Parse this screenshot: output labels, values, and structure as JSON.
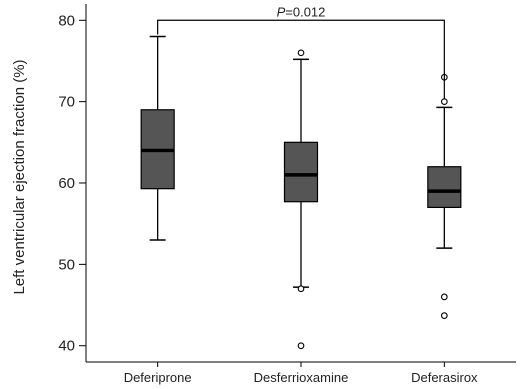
{
  "chart_data": {
    "type": "boxplot",
    "title": "",
    "xlabel": "",
    "ylabel": "Left ventricular ejection fraction (%)",
    "ylim": [
      38,
      82
    ],
    "yticks": [
      40,
      50,
      60,
      70,
      80
    ],
    "grid": false,
    "legend": "none",
    "categories": [
      "Deferiprone",
      "Desferrioxamine",
      "Deferasirox"
    ],
    "boxes": [
      {
        "category": "Deferiprone",
        "whisker_low": 53,
        "q1": 59.3,
        "median": 64,
        "q3": 69,
        "whisker_high": 78,
        "outliers": []
      },
      {
        "category": "Desferrioxamine",
        "whisker_low": 47.2,
        "q1": 57.7,
        "median": 61,
        "q3": 65,
        "whisker_high": 75.2,
        "outliers": [
          76,
          47,
          40
        ]
      },
      {
        "category": "Deferasirox",
        "whisker_low": 52,
        "q1": 57,
        "median": 59,
        "q3": 62,
        "whisker_high": 69.3,
        "outliers": [
          73,
          70,
          46,
          43.7
        ]
      }
    ],
    "annotation": {
      "label_italic": "P",
      "label_rest": "=0.012",
      "from_category": "Deferiprone",
      "to_category": "Deferasirox",
      "y": 80
    },
    "colors": {
      "box_fill": "#555555",
      "stroke": "#000000"
    }
  }
}
